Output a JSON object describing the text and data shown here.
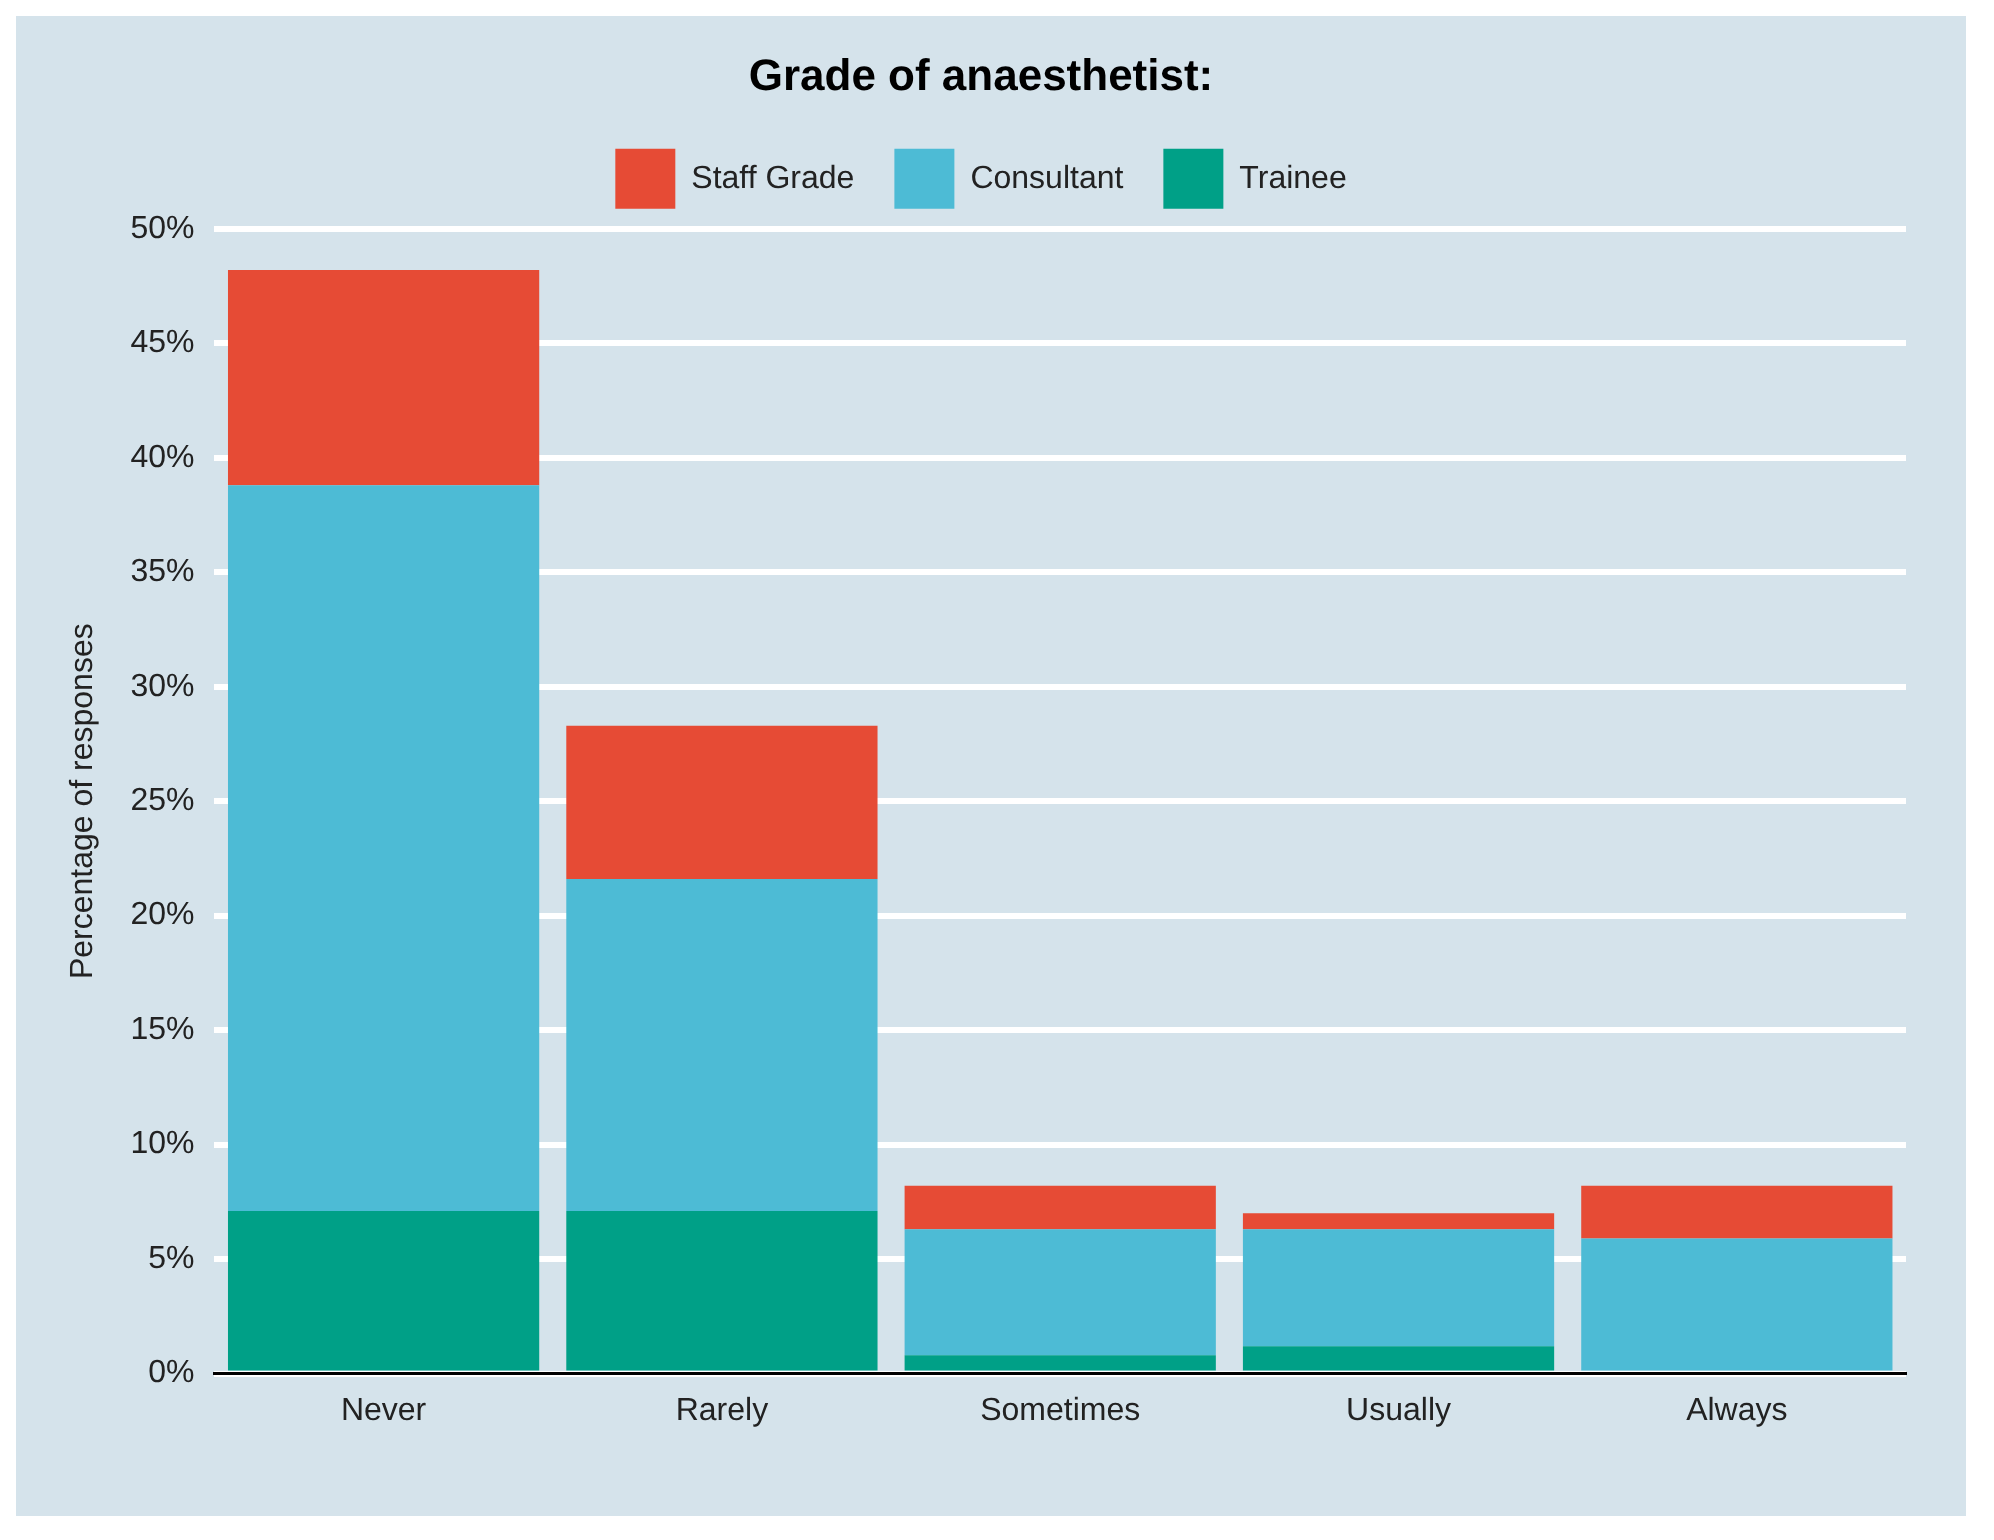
{
  "chart_data": {
    "type": "bar",
    "stacked": true,
    "legend_title": "Grade of anaesthetist:",
    "ylabel": "Percentage of responses",
    "categories": [
      "Never",
      "Rarely",
      "Sometimes",
      "Usually",
      "Always"
    ],
    "series": [
      {
        "name": "Trainee",
        "color": "#00a087",
        "values": [
          7.1,
          7.1,
          0.8,
          1.2,
          0
        ]
      },
      {
        "name": "Consultant",
        "color": "#4dbbd5",
        "values": [
          31.7,
          14.5,
          5.5,
          5.1,
          5.9
        ]
      },
      {
        "name": "Staff Grade",
        "color": "#e64b35",
        "values": [
          9.4,
          6.7,
          1.9,
          0.7,
          2.3
        ]
      }
    ],
    "ylim": [
      0,
      50
    ],
    "yticks": [
      {
        "value": 0,
        "label": "0%"
      },
      {
        "value": 5,
        "label": "5%"
      },
      {
        "value": 10,
        "label": "10%"
      },
      {
        "value": 15,
        "label": "15%"
      },
      {
        "value": 20,
        "label": "20%"
      },
      {
        "value": 25,
        "label": "25%"
      },
      {
        "value": 30,
        "label": "30%"
      },
      {
        "value": 35,
        "label": "35%"
      },
      {
        "value": 40,
        "label": "40%"
      },
      {
        "value": 45,
        "label": "45%"
      },
      {
        "value": 50,
        "label": "50%"
      }
    ],
    "grid": "y",
    "legend": "top"
  }
}
